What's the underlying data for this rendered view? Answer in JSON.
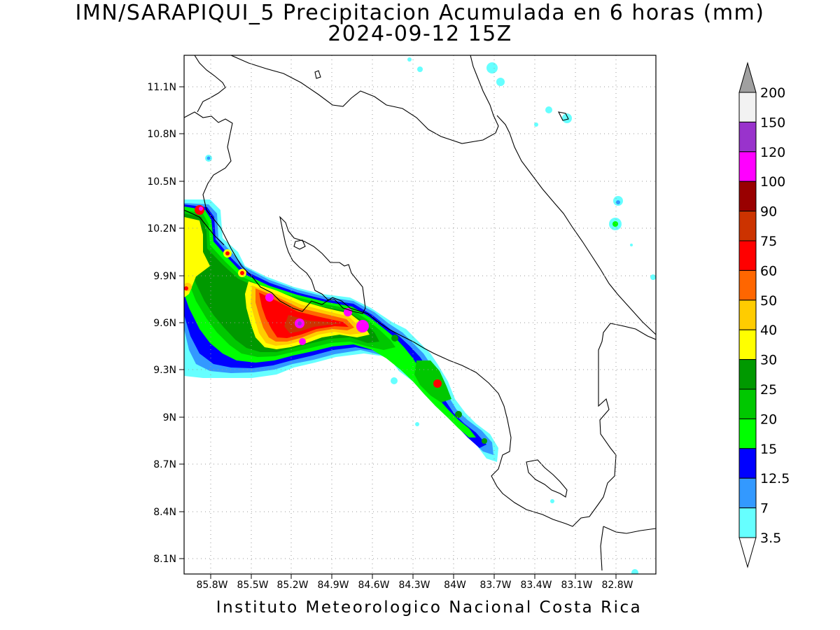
{
  "title": {
    "line1": "IMN/SARAPIQUI_5 Precipitacion Acumulada en 6 horas (mm)",
    "line2": "2024-09-12 15Z"
  },
  "footer": "Instituto Meteorologico Nacional Costa Rica",
  "map": {
    "lat_labels": [
      "11.1N",
      "10.8N",
      "10.5N",
      "10.2N",
      "9.9N",
      "9.6N",
      "9.3N",
      "9N",
      "8.7N",
      "8.4N",
      "8.1N"
    ],
    "lon_labels": [
      "85.8W",
      "85.5W",
      "85.2W",
      "84.9W",
      "84.6W",
      "84.3W",
      "84W",
      "83.7W",
      "83.4W",
      "83.1W",
      "82.8W"
    ],
    "grid": "dotted"
  },
  "colorbar": {
    "labels": [
      "200",
      "150",
      "120",
      "100",
      "90",
      "75",
      "60",
      "50",
      "40",
      "30",
      "25",
      "20",
      "15",
      "12.5",
      "7",
      "3.5"
    ],
    "colors": [
      "#a0a0a0",
      "#f2f2f2",
      "#9933cc",
      "#ff00ff",
      "#990000",
      "#cc3300",
      "#ff0000",
      "#ff6600",
      "#ffcc00",
      "#ffff00",
      "#009900",
      "#00c800",
      "#00ff00",
      "#0000ff",
      "#3399ff",
      "#66ffff",
      "#ffffff"
    ]
  }
}
